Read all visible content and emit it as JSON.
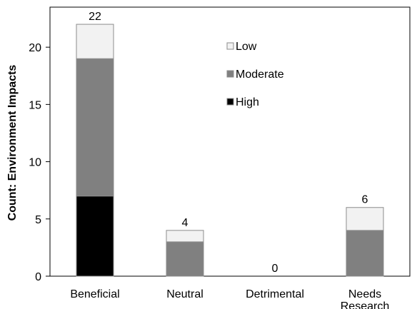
{
  "chart_data": {
    "type": "bar",
    "stacked": true,
    "categories": [
      "Beneficial",
      "Neutral",
      "Detrimental",
      "Needs Research"
    ],
    "category_label_lines": [
      [
        "Beneficial"
      ],
      [
        "Neutral"
      ],
      [
        "Detrimental"
      ],
      [
        "Needs",
        "Research"
      ]
    ],
    "series": [
      {
        "name": "High",
        "color": "#000000",
        "values": [
          7,
          0,
          0,
          0
        ]
      },
      {
        "name": "Moderate",
        "color": "#808080",
        "values": [
          12,
          3,
          0,
          4
        ]
      },
      {
        "name": "Low",
        "color": "#f2f2f2",
        "values": [
          3,
          1,
          0,
          2
        ]
      }
    ],
    "totals": [
      22,
      4,
      0,
      6
    ],
    "legend_order": [
      "Low",
      "Moderate",
      "High"
    ],
    "legend_position": "top-center",
    "ylabel": "Count: Environment Impacts",
    "xlabel": "",
    "ylim": [
      0,
      23.5
    ],
    "yticks": [
      0,
      5,
      10,
      15,
      20
    ],
    "grid": false
  }
}
